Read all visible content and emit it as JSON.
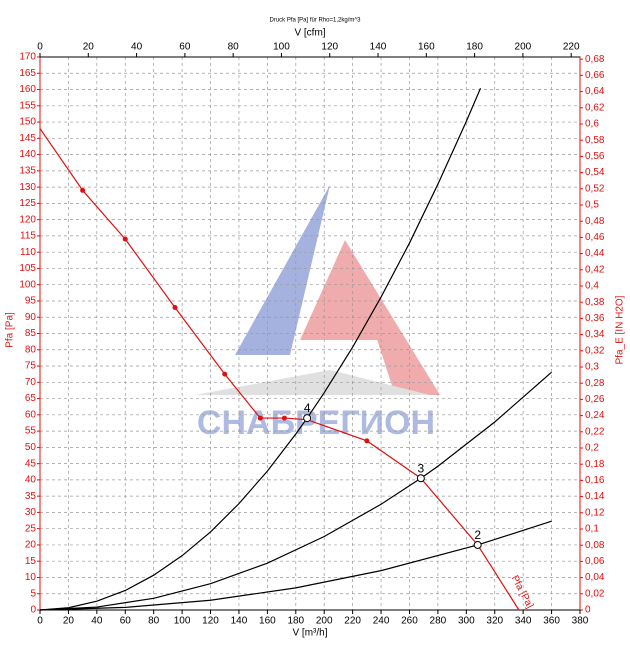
{
  "chart_data": {
    "type": "line",
    "title": "Druck Pfa [Pa] für Rho=1,2kg/m^3",
    "x_label": "V [m³/h]",
    "x2_label": "V [cfm]",
    "y_label": "Pfa [Pa]",
    "y2_label": "Pfa_E [IN H2O]",
    "watermark": "СНАБРЕГИОН",
    "curve_label": "Pfa [Pa]",
    "xlim": [
      0,
      380
    ],
    "xticks": [
      0,
      20,
      40,
      60,
      80,
      100,
      120,
      140,
      160,
      180,
      200,
      220,
      240,
      260,
      280,
      300,
      320,
      340,
      360,
      380
    ],
    "x2lim": [
      0,
      223.65
    ],
    "x2ticks": [
      0,
      20,
      40,
      60,
      80,
      100,
      120,
      140,
      160,
      180,
      200,
      220
    ],
    "ylim": [
      0,
      170
    ],
    "yticks": [
      0,
      5,
      10,
      15,
      20,
      25,
      30,
      35,
      40,
      45,
      50,
      55,
      60,
      65,
      70,
      75,
      80,
      85,
      90,
      95,
      100,
      105,
      110,
      115,
      120,
      125,
      130,
      135,
      140,
      145,
      150,
      155,
      160,
      165,
      170
    ],
    "y2lim": [
      0,
      0.6827
    ],
    "y2ticks": [
      0,
      {
        "value": 0.02,
        "label": "0,02"
      },
      {
        "value": 0.04,
        "label": "0,04"
      },
      {
        "value": 0.06,
        "label": "0,06"
      },
      {
        "value": 0.08,
        "label": "0,08"
      },
      {
        "value": 0.1,
        "label": "0,1"
      },
      {
        "value": 0.12,
        "label": "0,12"
      },
      {
        "value": 0.14,
        "label": "0,14"
      },
      {
        "value": 0.16,
        "label": "0,16"
      },
      {
        "value": 0.18,
        "label": "0,18"
      },
      {
        "value": 0.2,
        "label": "0,2"
      },
      {
        "value": 0.22,
        "label": "0,22"
      },
      {
        "value": 0.24,
        "label": "0,24"
      },
      {
        "value": 0.26,
        "label": "0,26"
      },
      {
        "value": 0.28,
        "label": "0,28"
      },
      {
        "value": 0.3,
        "label": "0,3"
      },
      {
        "value": 0.32,
        "label": "0,32"
      },
      {
        "value": 0.34,
        "label": "0,34"
      },
      {
        "value": 0.36,
        "label": "0,36"
      },
      {
        "value": 0.38,
        "label": "0,38"
      },
      {
        "value": 0.4,
        "label": "0,4"
      },
      {
        "value": 0.42,
        "label": "0,42"
      },
      {
        "value": 0.44,
        "label": "0,44"
      },
      {
        "value": 0.46,
        "label": "0,46"
      },
      {
        "value": 0.48,
        "label": "0,48"
      },
      {
        "value": 0.5,
        "label": "0,5"
      },
      {
        "value": 0.52,
        "label": "0,52"
      },
      {
        "value": 0.54,
        "label": "0,54"
      },
      {
        "value": 0.56,
        "label": "0,56"
      },
      {
        "value": 0.58,
        "label": "0,58"
      },
      {
        "value": 0.6,
        "label": "0,6"
      },
      {
        "value": 0.62,
        "label": "0,62"
      },
      {
        "value": 0.64,
        "label": "0,64"
      },
      {
        "value": 0.66,
        "label": "0,66"
      },
      {
        "value": 0.68,
        "label": "0,68"
      }
    ],
    "grid": true,
    "series": [
      {
        "color": "#e01010",
        "x": [
          0,
          30,
          60,
          95,
          130,
          155,
          172,
          188,
          230,
          268,
          308,
          337
        ],
        "values": [
          148,
          129,
          114,
          93,
          72.5,
          59,
          59,
          58.5,
          52,
          40.5,
          20,
          0
        ]
      },
      {
        "color": "#000000",
        "x": [
          0,
          20,
          40,
          60,
          80,
          100,
          120,
          140,
          160,
          180,
          188,
          200,
          220,
          240,
          260,
          280,
          300,
          310
        ],
        "values": [
          0,
          0.7,
          2.7,
          6,
          10.7,
          16.7,
          24,
          32.7,
          42.7,
          54.1,
          59,
          66.8,
          80.8,
          96.2,
          112.8,
          130.9,
          150.2,
          160.4
        ]
      },
      {
        "color": "#000000",
        "x": [
          0,
          40,
          80,
          120,
          160,
          200,
          240,
          268,
          280,
          320,
          360
        ],
        "values": [
          0,
          0.9,
          3.6,
          8.1,
          14.4,
          22.6,
          32.5,
          40.5,
          44.2,
          57.8,
          73.1
        ]
      },
      {
        "color": "#000000",
        "x": [
          0,
          60,
          120,
          180,
          240,
          308,
          360
        ],
        "values": [
          0,
          0.8,
          3,
          6.8,
          12.1,
          20,
          27.3
        ]
      }
    ],
    "operating_points": [
      {
        "label": "4",
        "x": 188,
        "y": 59
      },
      {
        "label": "3",
        "x": 268,
        "y": 40.5
      },
      {
        "label": "2",
        "x": 308,
        "y": 20
      }
    ]
  }
}
